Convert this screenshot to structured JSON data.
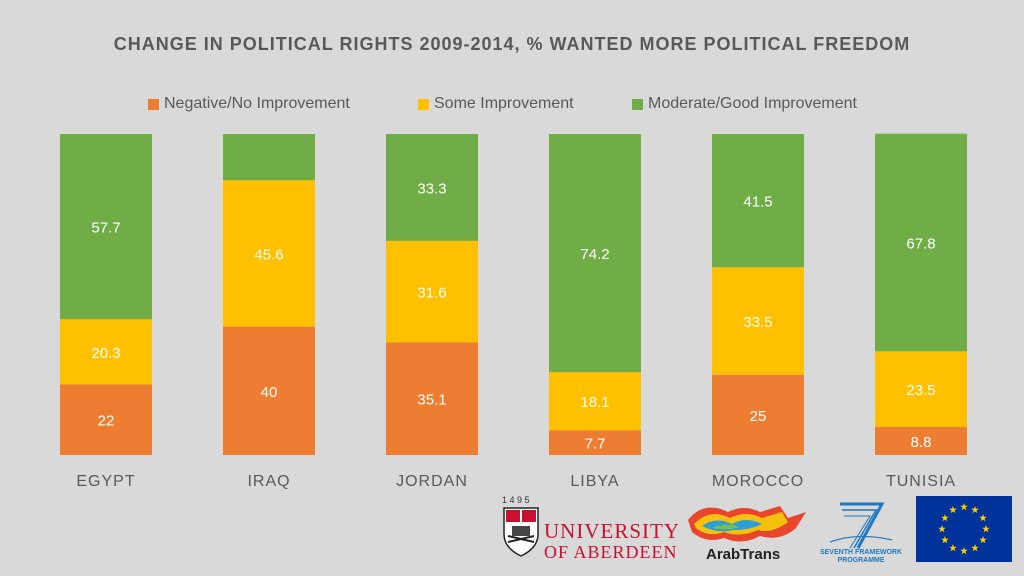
{
  "chart_data": {
    "type": "bar",
    "stacked": true,
    "title": "CHANGE IN POLITICAL RIGHTS 2009-2014, % WANTED MORE POLITICAL FREEDOM",
    "categories": [
      "EGYPT",
      "IRAQ",
      "JORDAN",
      "LIBYA",
      "MOROCCO",
      "TUNISIA"
    ],
    "series": [
      {
        "name": "Negative/No Improvement",
        "color": "#ed7d31",
        "values": [
          22,
          40,
          35.1,
          7.7,
          25,
          8.8
        ],
        "labels": [
          "22",
          "40",
          "35.1",
          "7.7",
          "25",
          "8.8"
        ]
      },
      {
        "name": "Some Improvement",
        "color": "#ffc000",
        "values": [
          20.3,
          45.6,
          31.6,
          18.1,
          33.5,
          23.5
        ],
        "labels": [
          "20.3",
          "45.6",
          "31.6",
          "18.1",
          "33.5",
          "23.5"
        ]
      },
      {
        "name": "Moderate/Good Improvement",
        "color": "#70ad47",
        "values": [
          57.7,
          14.4,
          33.3,
          74.2,
          41.5,
          67.8
        ],
        "labels": [
          "57.7",
          "",
          "33.3",
          "74.2",
          "41.5",
          "67.8"
        ]
      }
    ],
    "ylim": [
      0,
      100
    ],
    "legend_position": "top",
    "xlabel": "",
    "ylabel": ""
  },
  "logos": {
    "aberdeen_year": "1 4 9 5",
    "aberdeen_line1": "UNIVERSITY",
    "aberdeen_line2": "OF ABERDEEN",
    "arabtrans_text": "ArabTrans",
    "fp7_line1": "SEVENTH FRAMEWORK",
    "fp7_line2": "PROGRAMME"
  }
}
